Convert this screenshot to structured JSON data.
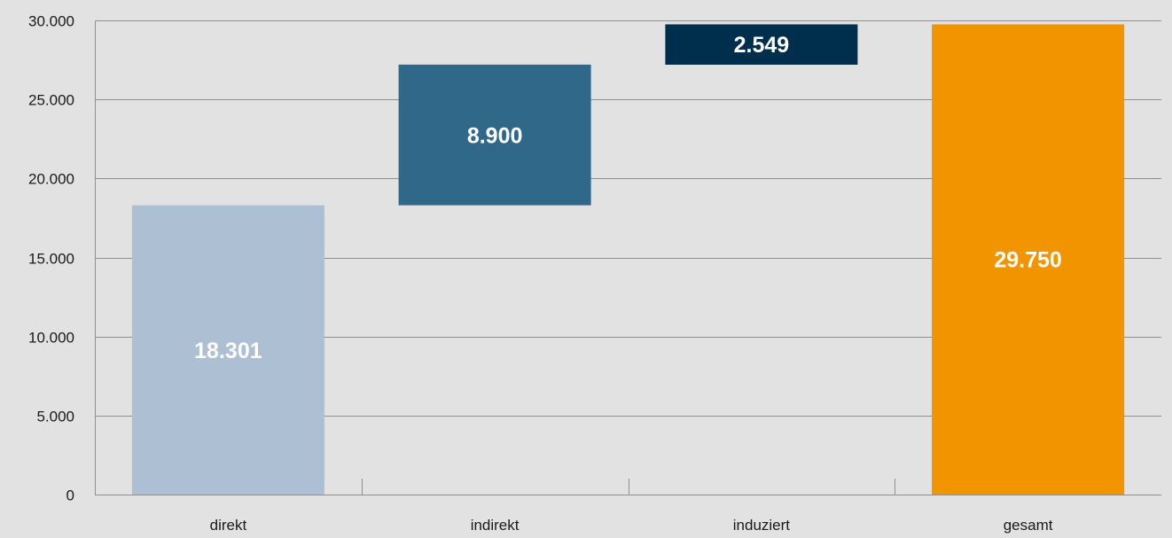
{
  "chart_data": {
    "type": "bar",
    "variant": "waterfall",
    "title": "",
    "xlabel": "",
    "ylabel": "",
    "ylim": [
      0,
      30000
    ],
    "grid": true,
    "yticks": [
      {
        "value": 0,
        "label": "0"
      },
      {
        "value": 5000,
        "label": "5.000"
      },
      {
        "value": 10000,
        "label": "10.000"
      },
      {
        "value": 15000,
        "label": "15.000"
      },
      {
        "value": 20000,
        "label": "20.000"
      },
      {
        "value": 25000,
        "label": "25.000"
      },
      {
        "value": 30000,
        "label": "30.000"
      }
    ],
    "categories": [
      "direkt",
      "indirekt",
      "induziert",
      "gesamt"
    ],
    "values": [
      18301,
      8900,
      2549,
      29750
    ],
    "bases": [
      0,
      18301,
      27201,
      0
    ],
    "labels": [
      "18.301",
      "8.900",
      "2.549",
      "29.750"
    ],
    "colors": [
      "#adbfd3",
      "#30688a",
      "#002f4d",
      "#f29300"
    ]
  }
}
